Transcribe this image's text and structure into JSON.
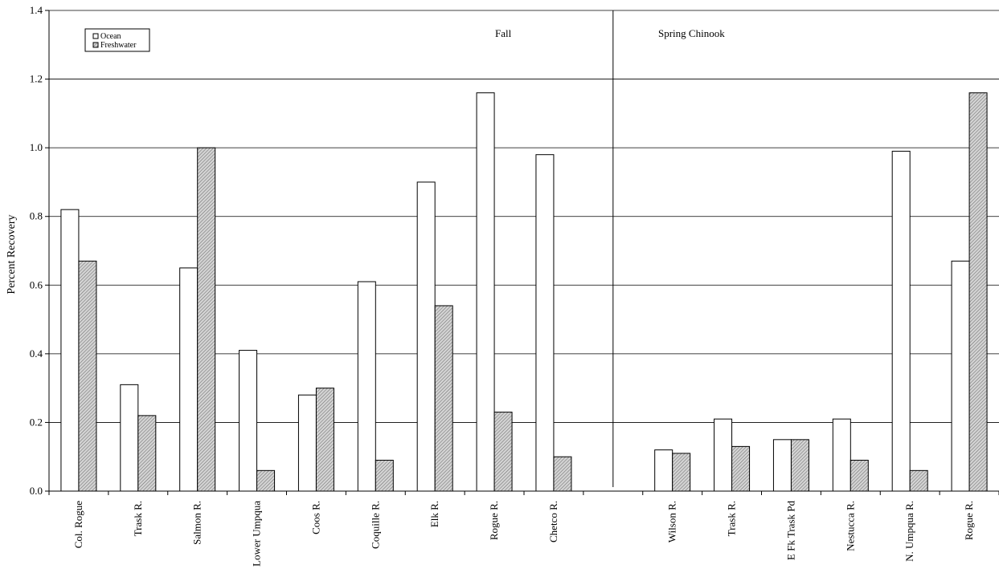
{
  "chart_data": {
    "type": "bar",
    "ylabel": "Percent Recovery",
    "ylim": [
      0,
      1.4
    ],
    "yticks": [
      "0.0",
      "0.2",
      "0.4",
      "0.6",
      "0.8",
      "1.0",
      "1.2",
      "1.4"
    ],
    "grid": true,
    "legend_position": "top-left",
    "groups": [
      {
        "label": "Fall",
        "categories": [
          "Col. Rogue",
          "Trask R.",
          "Salmon R.",
          "Lower Umpqua",
          "Coos R.",
          "Coquille R.",
          "Elk R.",
          "Rogue R.",
          "Chetco R."
        ]
      },
      {
        "label": "Spring Chinook",
        "categories": [
          "Wilson R.",
          "Trask R.",
          "E Fk Trask Pd",
          "Nestucca R.",
          "N. Umpqua R.",
          "Rogue R."
        ]
      }
    ],
    "series": [
      {
        "name": "Ocean",
        "fill": "#ffffff",
        "values": [
          0.82,
          0.31,
          0.65,
          0.41,
          0.28,
          0.61,
          0.9,
          1.16,
          0.98,
          0.12,
          0.21,
          0.15,
          0.21,
          0.99,
          0.67
        ]
      },
      {
        "name": "Freshwater",
        "fill": "hatched-gray",
        "values": [
          0.67,
          0.22,
          1.0,
          0.06,
          0.3,
          0.09,
          0.54,
          0.23,
          0.1,
          0.11,
          0.13,
          0.15,
          0.09,
          0.06,
          1.16
        ]
      }
    ]
  }
}
